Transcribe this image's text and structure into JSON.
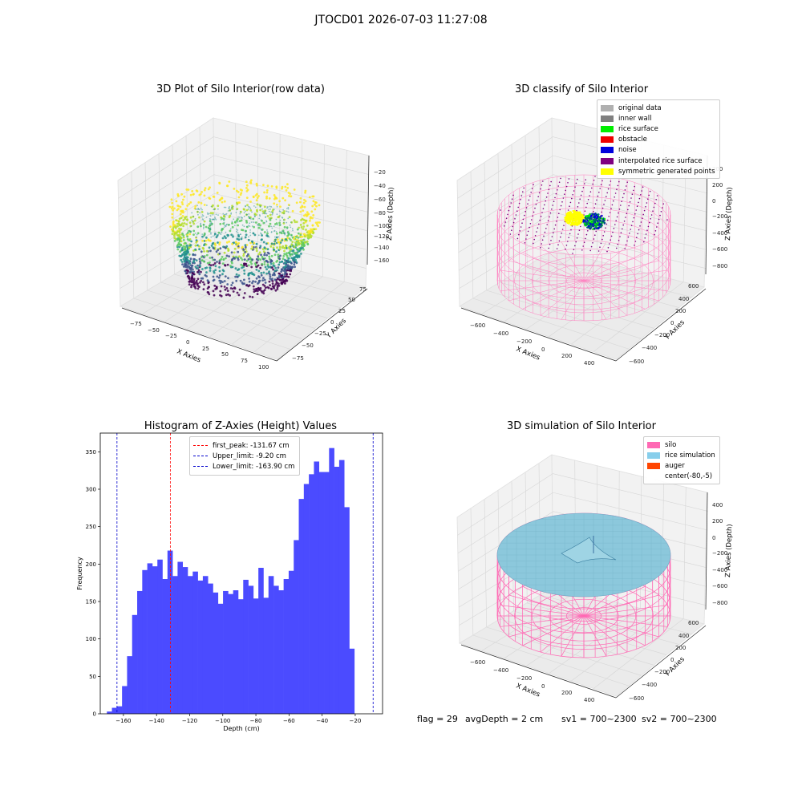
{
  "suptitle": "JTOCD01 2026-07-03 11:27:08",
  "footer": {
    "flag": "flag = 29",
    "avg_depth": "avgDepth = 2 cm",
    "sv1": "sv1 = 700~2300",
    "sv2": "sv2 = 700~2300"
  },
  "chart_data": [
    {
      "type": "scatter",
      "title": "3D Plot of Silo Interior(row data)",
      "xlabel": "X Axies",
      "ylabel": "Y Axies",
      "zlabel": "Z Axies (Depth)",
      "x_ticks": [
        "−75",
        "−50",
        "−25",
        "0",
        "25",
        "50",
        "75",
        "100"
      ],
      "y_ticks": [
        "−75",
        "−50",
        "−25",
        "0",
        "25",
        "50",
        "75"
      ],
      "z_ticks": [
        "−20",
        "−40",
        "−60",
        "−80",
        "−100",
        "−120",
        "−140",
        "−160"
      ],
      "colormap": "viridis"
    },
    {
      "type": "scatter",
      "title": "3D classify of Silo Interior",
      "xlabel": "X Axies",
      "ylabel": "Y Axies",
      "zlabel": "Z Axies (Depth)",
      "x_ticks": [
        "−600",
        "−400",
        "−200",
        "0",
        "200",
        "400"
      ],
      "y_ticks": [
        "−600",
        "−400",
        "−200",
        "0",
        "200",
        "400",
        "600"
      ],
      "z_ticks": [
        "200",
        "0",
        "−200",
        "−400",
        "−600",
        "−800"
      ],
      "legend": [
        {
          "name": "original data",
          "color": "#b0b0b0"
        },
        {
          "name": "inner wall",
          "color": "#808080"
        },
        {
          "name": "rice surface",
          "color": "#00ee00"
        },
        {
          "name": "obstacle",
          "color": "#ee0000"
        },
        {
          "name": "noise",
          "color": "#0000dd"
        },
        {
          "name": "interpolated rice surface",
          "color": "#800080"
        },
        {
          "name": "symmetric generated points",
          "color": "#ffff00"
        }
      ]
    },
    {
      "type": "bar",
      "title": "Histogram of Z-Axies (Height) Values",
      "xlabel": "Depth (cm)",
      "ylabel": "Frequency",
      "xlim": [
        -174,
        -3.5
      ],
      "ylim": [
        0,
        375
      ],
      "x_ticks": [
        -160,
        -140,
        -120,
        -100,
        -80,
        -60,
        -40,
        -20
      ],
      "y_ticks": [
        0,
        50,
        100,
        150,
        200,
        250,
        300,
        350
      ],
      "bin_start": -170,
      "bin_width": 3.05,
      "bar_color": "#4b4bff",
      "values": [
        3,
        8,
        10,
        37,
        77,
        132,
        164,
        192,
        201,
        197,
        206,
        180,
        218,
        184,
        203,
        196,
        184,
        190,
        178,
        184,
        174,
        162,
        147,
        164,
        160,
        165,
        153,
        179,
        171,
        154,
        195,
        155,
        184,
        171,
        165,
        180,
        191,
        232,
        287,
        307,
        320,
        337,
        323,
        323,
        355,
        330,
        339,
        276,
        87
      ],
      "vlines": [
        {
          "name": "first_peak: -131.67 cm",
          "x": -131.67,
          "color": "#ff0000"
        },
        {
          "name": "Upper_limit: -9.20 cm",
          "x": -9.2,
          "color": "#0000cc"
        },
        {
          "name": "Lower_limit: -163.90 cm",
          "x": -163.9,
          "color": "#0000cc"
        }
      ]
    },
    {
      "type": "scatter",
      "title": "3D simulation of Silo Interior",
      "xlabel": "X Axies",
      "ylabel": "Y Axies",
      "zlabel": "Z Axies (Depth)",
      "x_ticks": [
        "−600",
        "−400",
        "−200",
        "0",
        "200",
        "400"
      ],
      "y_ticks": [
        "−600",
        "−400",
        "−200",
        "0",
        "200",
        "400",
        "600"
      ],
      "z_ticks": [
        "400",
        "200",
        "0",
        "−200",
        "−400",
        "−600",
        "−800"
      ],
      "legend": [
        {
          "name": "silo",
          "color": "#ff69b4"
        },
        {
          "name": "rice simulation",
          "color": "#87ceeb"
        },
        {
          "name": "auger",
          "color": "#ff4500"
        },
        {
          "name": "center(-80,-5)",
          "color": "#ffffff"
        }
      ]
    }
  ]
}
